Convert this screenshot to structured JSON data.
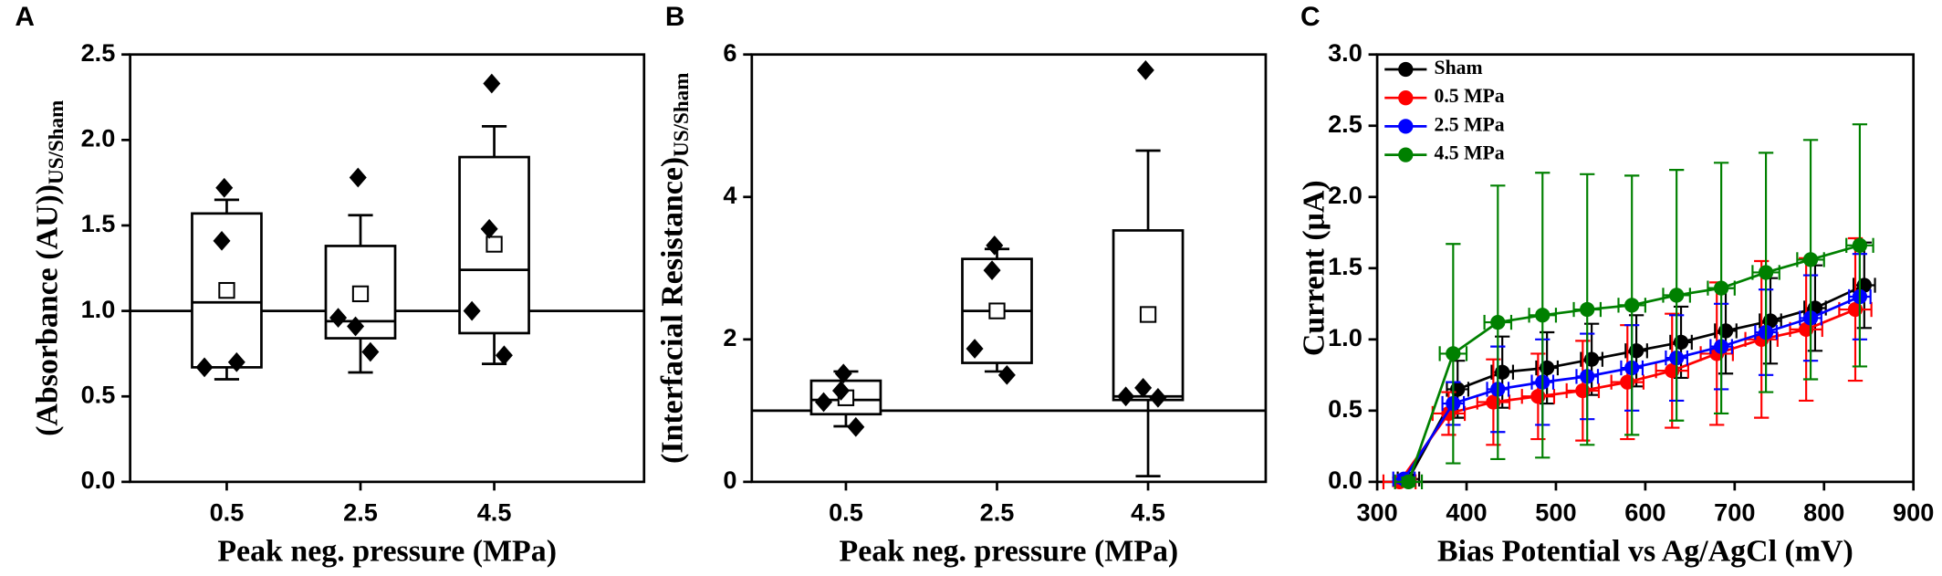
{
  "chart_data": [
    {
      "type": "box",
      "panel_label": "A",
      "x_label": "Peak neg. pressure (MPa)",
      "y_label": "(Absorbance (AU))",
      "y_label_sub": "US/Sham",
      "categories": [
        "0.5",
        "2.5",
        "4.5"
      ],
      "ylim": [
        0,
        2.5
      ],
      "yticks": [
        {
          "value": 0,
          "label": "0.0"
        },
        {
          "value": 0.5,
          "label": "0.5"
        },
        {
          "value": 1,
          "label": "1.0"
        },
        {
          "value": 1.5,
          "label": "1.5"
        },
        {
          "value": 2,
          "label": "2.0"
        },
        {
          "value": 2.5,
          "label": "2.5"
        }
      ],
      "reference_line": 1,
      "boxes": [
        {
          "q1": 0.67,
          "median": 1.05,
          "q3": 1.57,
          "whisker_low": 0.6,
          "whisker_high": 1.65,
          "mean": 1.12,
          "points": [
            1.72,
            1.41,
            0.67,
            0.7
          ]
        },
        {
          "q1": 0.84,
          "median": 0.94,
          "q3": 1.38,
          "whisker_low": 0.64,
          "whisker_high": 1.56,
          "mean": 1.1,
          "points": [
            1.78,
            0.91,
            0.96,
            0.76
          ]
        },
        {
          "q1": 0.87,
          "median": 1.24,
          "q3": 1.9,
          "whisker_low": 0.69,
          "whisker_high": 2.08,
          "mean": 1.39,
          "points": [
            2.33,
            1.48,
            1.0,
            0.74
          ]
        }
      ]
    },
    {
      "type": "box",
      "panel_label": "B",
      "x_label": "Peak neg. pressure (MPa)",
      "y_label": "(Interfacial Resistance)",
      "y_label_sub": "US/Sham",
      "categories": [
        "0.5",
        "2.5",
        "4.5"
      ],
      "ylim": [
        0,
        6
      ],
      "yticks": [
        0,
        2,
        4,
        6
      ],
      "reference_line": 1,
      "boxes": [
        {
          "q1": 0.95,
          "median": 1.15,
          "q3": 1.42,
          "whisker_low": 0.78,
          "whisker_high": 1.55,
          "mean": 1.18,
          "points": [
            1.52,
            1.28,
            1.12,
            0.77
          ]
        },
        {
          "q1": 1.67,
          "median": 2.4,
          "q3": 3.13,
          "whisker_low": 1.55,
          "whisker_high": 3.27,
          "mean": 2.4,
          "points": [
            3.32,
            2.97,
            1.87,
            1.5
          ]
        },
        {
          "q1": 1.15,
          "median": 1.2,
          "q3": 3.53,
          "whisker_low": 0.08,
          "whisker_high": 4.65,
          "mean": 2.35,
          "points": [
            5.78,
            1.32,
            1.2,
            1.18
          ]
        }
      ]
    },
    {
      "type": "line",
      "panel_label": "C",
      "x_label": "Bias Potential  vs Ag/AgCl (mV)",
      "y_label": "Current (μA)",
      "xlim": [
        300,
        900
      ],
      "xticks": [
        300,
        400,
        500,
        600,
        700,
        800,
        900
      ],
      "ylim": [
        0,
        3
      ],
      "yticks": [
        {
          "value": 0,
          "label": "0.0"
        },
        {
          "value": 0.5,
          "label": "0.5"
        },
        {
          "value": 1,
          "label": "1.0"
        },
        {
          "value": 1.5,
          "label": "1.5"
        },
        {
          "value": 2,
          "label": "2.0"
        },
        {
          "value": 2.5,
          "label": "2.5"
        },
        {
          "value": 3,
          "label": "3.0"
        }
      ],
      "legend": "upper left",
      "series": [
        {
          "name": "Sham",
          "color": "#000000",
          "x": [
            335,
            390,
            440,
            490,
            540,
            590,
            640,
            690,
            740,
            790,
            845
          ],
          "values": [
            0.02,
            0.65,
            0.77,
            0.8,
            0.86,
            0.92,
            0.98,
            1.06,
            1.13,
            1.22,
            1.38
          ],
          "yerr": [
            0.03,
            0.2,
            0.25,
            0.25,
            0.25,
            0.25,
            0.25,
            0.3,
            0.3,
            0.3,
            0.3
          ],
          "xerr": 12
        },
        {
          "name": "0.5 MPa",
          "color": "#ff0000",
          "x": [
            325,
            380,
            430,
            480,
            530,
            580,
            630,
            680,
            730,
            780,
            835
          ],
          "values": [
            0.0,
            0.48,
            0.56,
            0.6,
            0.64,
            0.7,
            0.78,
            0.9,
            1.0,
            1.07,
            1.21
          ],
          "yerr": [
            0.03,
            0.15,
            0.3,
            0.3,
            0.35,
            0.4,
            0.4,
            0.5,
            0.55,
            0.5,
            0.5
          ],
          "xerr": 18
        },
        {
          "name": "2.5 MPa",
          "color": "#0000ff",
          "x": [
            330,
            385,
            435,
            485,
            535,
            585,
            635,
            685,
            735,
            785,
            840
          ],
          "values": [
            0.02,
            0.55,
            0.65,
            0.7,
            0.74,
            0.8,
            0.87,
            0.95,
            1.05,
            1.15,
            1.3
          ],
          "yerr": [
            0.03,
            0.15,
            0.3,
            0.3,
            0.3,
            0.3,
            0.3,
            0.3,
            0.3,
            0.3,
            0.3
          ],
          "xerr": 12
        },
        {
          "name": "4.5 MPa",
          "color": "#008000",
          "x": [
            335,
            385,
            435,
            485,
            535,
            585,
            635,
            685,
            735,
            785,
            840
          ],
          "values": [
            0.0,
            0.9,
            1.12,
            1.17,
            1.21,
            1.24,
            1.31,
            1.36,
            1.47,
            1.56,
            1.66
          ],
          "yerr": [
            0.03,
            0.77,
            0.96,
            1.0,
            0.95,
            0.91,
            0.88,
            0.88,
            0.84,
            0.84,
            0.85
          ],
          "xerr": 15
        }
      ]
    }
  ]
}
